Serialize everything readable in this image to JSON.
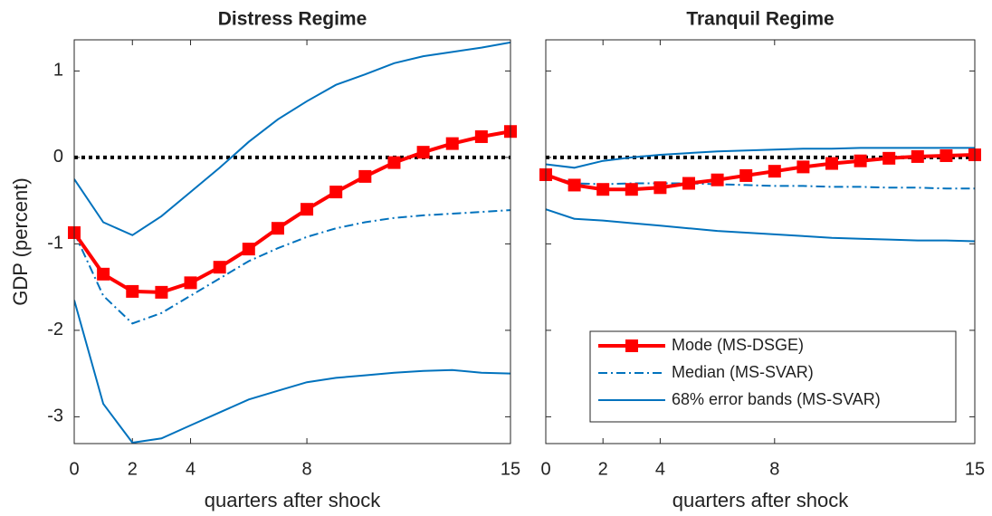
{
  "chart_data": [
    {
      "type": "line",
      "title": "Distress Regime",
      "ylabel": "GDP (percent)",
      "xlabel": "quarters after shock",
      "x": [
        0,
        1,
        2,
        3,
        4,
        5,
        6,
        7,
        8,
        9,
        10,
        11,
        12,
        13,
        14,
        15
      ],
      "xlim": [
        0,
        15
      ],
      "xticks": [
        0,
        2,
        4,
        8,
        15
      ],
      "ylim": [
        -3.31,
        1.36
      ],
      "yticks": [
        -3,
        -2,
        -1,
        0,
        1
      ],
      "show_ytick_labels": true,
      "reference_line": 0,
      "series": [
        {
          "kind": "band",
          "color": "#0072bd",
          "upper": [
            -0.25,
            -0.75,
            -0.9,
            -0.68,
            -0.4,
            -0.12,
            0.18,
            0.44,
            0.65,
            0.84,
            0.96,
            1.09,
            1.17,
            1.22,
            1.27,
            1.33
          ],
          "lower": [
            -1.65,
            -2.85,
            -3.3,
            -3.25,
            -3.1,
            -2.95,
            -2.8,
            -2.7,
            -2.6,
            -2.55,
            -2.52,
            -2.49,
            -2.47,
            -2.46,
            -2.49,
            -2.5
          ]
        },
        {
          "kind": "dashdot",
          "color": "#0072bd",
          "values": [
            -0.87,
            -1.6,
            -1.92,
            -1.8,
            -1.6,
            -1.4,
            -1.2,
            -1.05,
            -0.92,
            -0.82,
            -0.75,
            -0.7,
            -0.67,
            -0.65,
            -0.63,
            -0.61
          ]
        },
        {
          "kind": "marker",
          "color": "#ff0000",
          "values": [
            -0.87,
            -1.35,
            -1.55,
            -1.56,
            -1.45,
            -1.27,
            -1.06,
            -0.82,
            -0.6,
            -0.4,
            -0.22,
            -0.06,
            0.06,
            0.16,
            0.24,
            0.3
          ]
        }
      ]
    },
    {
      "type": "line",
      "title": "Tranquil Regime",
      "xlabel": "quarters after shock",
      "x": [
        0,
        1,
        2,
        3,
        4,
        5,
        6,
        7,
        8,
        9,
        10,
        11,
        12,
        13,
        14,
        15
      ],
      "xlim": [
        0,
        15
      ],
      "xticks": [
        0,
        2,
        4,
        8,
        15
      ],
      "ylim": [
        -3.31,
        1.36
      ],
      "yticks": [
        -3,
        -2,
        -1,
        0,
        1
      ],
      "show_ytick_labels": false,
      "reference_line": 0,
      "legend": "lower right",
      "series": [
        {
          "kind": "band",
          "name": "68% error bands (MS-SVAR)",
          "color": "#0072bd",
          "upper": [
            -0.08,
            -0.12,
            -0.04,
            0.0,
            0.03,
            0.05,
            0.07,
            0.08,
            0.09,
            0.1,
            0.1,
            0.11,
            0.11,
            0.11,
            0.11,
            0.11
          ],
          "lower": [
            -0.6,
            -0.71,
            -0.73,
            -0.76,
            -0.79,
            -0.82,
            -0.85,
            -0.87,
            -0.89,
            -0.91,
            -0.93,
            -0.94,
            -0.95,
            -0.96,
            -0.96,
            -0.97
          ]
        },
        {
          "kind": "dashdot",
          "name": "Median (MS-SVAR)",
          "color": "#0072bd",
          "values": [
            -0.2,
            -0.3,
            -0.31,
            -0.3,
            -0.3,
            -0.3,
            -0.31,
            -0.32,
            -0.33,
            -0.33,
            -0.34,
            -0.34,
            -0.35,
            -0.35,
            -0.36,
            -0.36
          ]
        },
        {
          "kind": "marker",
          "name": "Mode (MS-DSGE)",
          "color": "#ff0000",
          "values": [
            -0.2,
            -0.32,
            -0.37,
            -0.37,
            -0.35,
            -0.3,
            -0.26,
            -0.21,
            -0.16,
            -0.11,
            -0.07,
            -0.04,
            -0.01,
            0.01,
            0.02,
            0.03
          ]
        }
      ]
    }
  ]
}
